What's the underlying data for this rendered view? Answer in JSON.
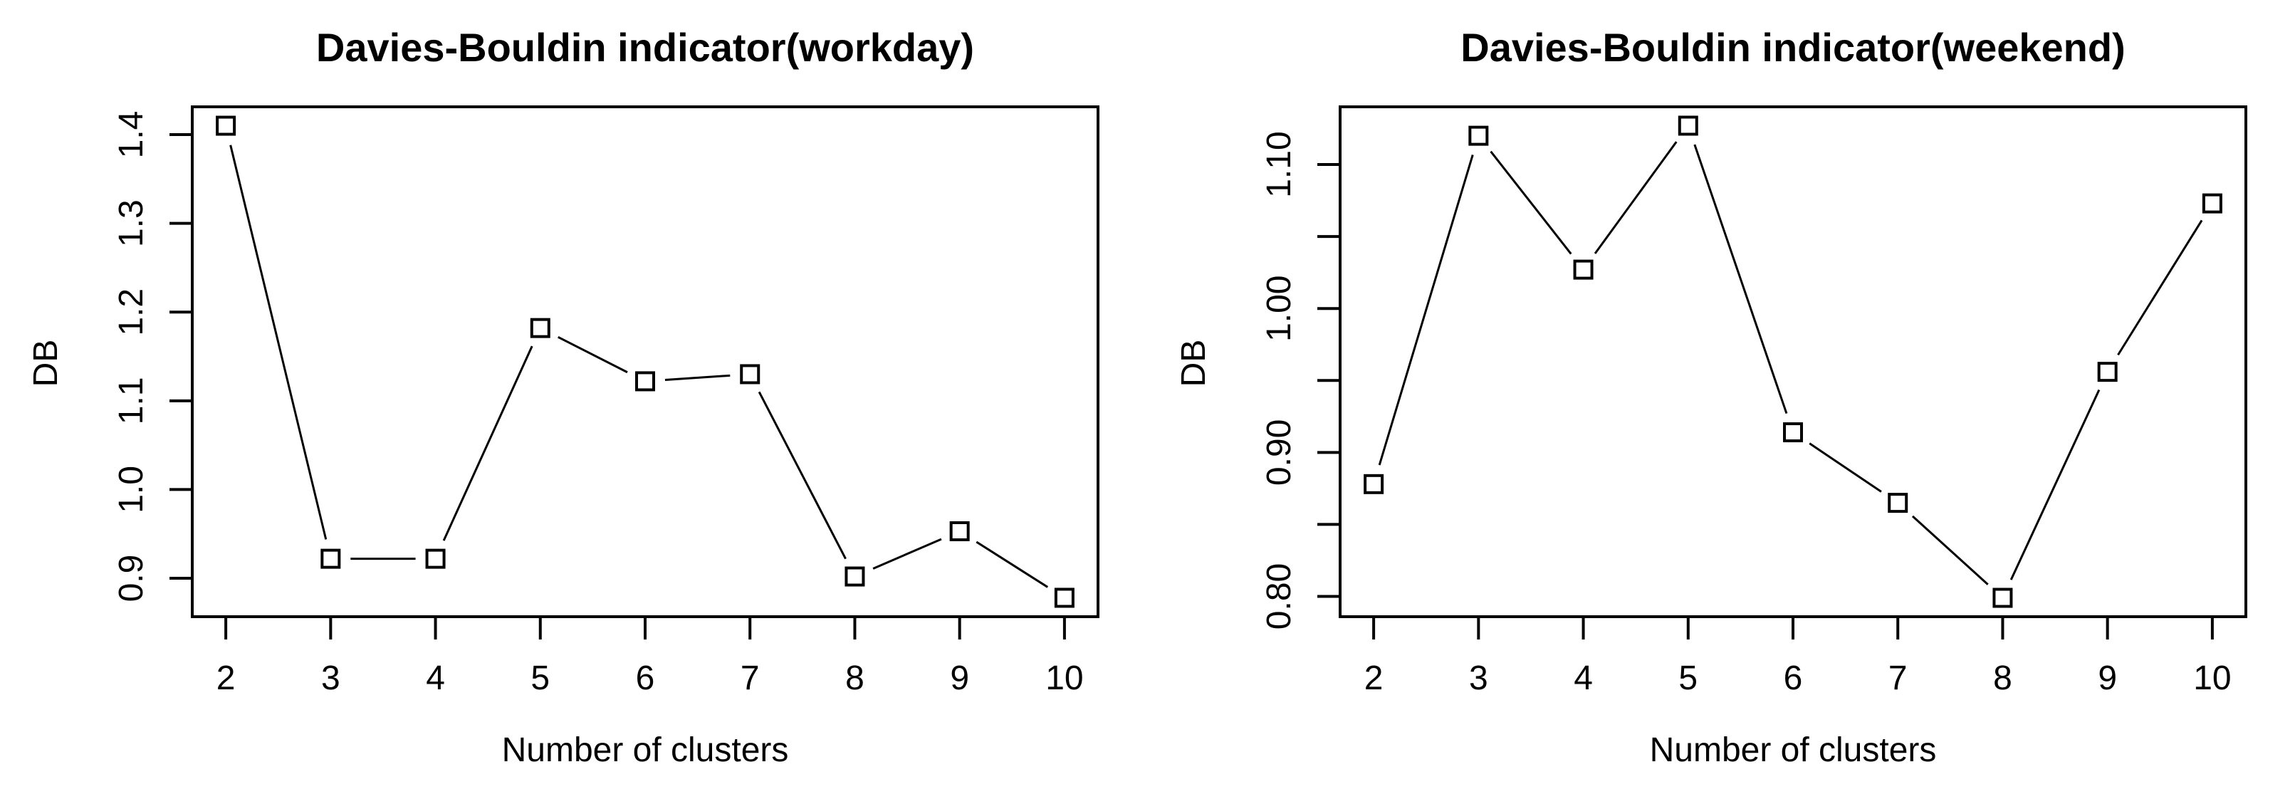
{
  "figure": {
    "background_color": "#ffffff",
    "foreground_color": "#000000"
  },
  "chart_data": [
    {
      "type": "line",
      "title": "Davies-Bouldin indicator(workday)",
      "xlabel": "Number of clusters",
      "ylabel": "DB",
      "x": [
        2,
        3,
        4,
        5,
        6,
        7,
        8,
        9,
        10
      ],
      "y": [
        1.41,
        0.922,
        0.922,
        1.182,
        1.122,
        1.13,
        0.902,
        0.953,
        0.878
      ],
      "xlim": [
        1.68,
        10.32
      ],
      "ylim": [
        0.8567,
        1.4313
      ],
      "xticks": [
        2,
        3,
        4,
        5,
        6,
        7,
        8,
        9,
        10
      ],
      "xtick_labels": [
        "2",
        "3",
        "4",
        "5",
        "6",
        "7",
        "8",
        "9",
        "10"
      ],
      "yticks": [
        0.9,
        1.0,
        1.1,
        1.2,
        1.3,
        1.4
      ],
      "ytick_labels": [
        "0.9",
        "1.0",
        "1.1",
        "1.2",
        "1.3",
        "1.4"
      ],
      "marker": "open-square",
      "line_style": "solid",
      "color": "#000000",
      "grid": "off",
      "legend": "none"
    },
    {
      "type": "line",
      "title": "Davies-Bouldin indicator(weekend)",
      "xlabel": "Number of clusters",
      "ylabel": "DB",
      "x": [
        2,
        3,
        4,
        5,
        6,
        7,
        8,
        9,
        10
      ],
      "y": [
        0.878,
        1.12,
        1.027,
        1.127,
        0.914,
        0.865,
        0.799,
        0.956,
        1.073
      ],
      "xlim": [
        1.68,
        10.32
      ],
      "ylim": [
        0.7859,
        1.1401
      ],
      "xticks": [
        2,
        3,
        4,
        5,
        6,
        7,
        8,
        9,
        10
      ],
      "xtick_labels": [
        "2",
        "3",
        "4",
        "5",
        "6",
        "7",
        "8",
        "9",
        "10"
      ],
      "yticks": [
        0.8,
        0.85,
        0.9,
        0.95,
        1.0,
        1.05,
        1.1
      ],
      "ytick_labels": [
        "0.80",
        "",
        "0.90",
        "",
        "1.00",
        "",
        "1.10"
      ],
      "marker": "open-square",
      "line_style": "solid",
      "color": "#000000",
      "grid": "off",
      "legend": "none"
    }
  ]
}
